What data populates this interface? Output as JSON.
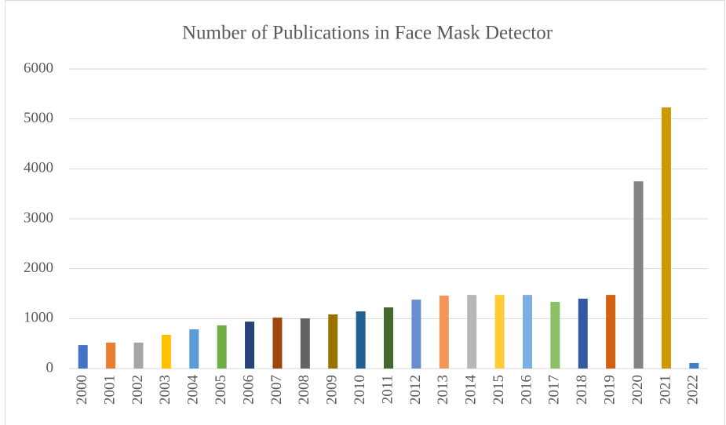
{
  "chart_data": {
    "type": "bar",
    "title": "Number of Publications in Face Mask Detector",
    "categories": [
      "2000",
      "2001",
      "2002",
      "2003",
      "2004",
      "2005",
      "2006",
      "2007",
      "2008",
      "2009",
      "2010",
      "2011",
      "2012",
      "2013",
      "2014",
      "2015",
      "2016",
      "2017",
      "2018",
      "2019",
      "2020",
      "2021",
      "2022"
    ],
    "values": [
      470,
      520,
      520,
      675,
      785,
      865,
      940,
      1020,
      1005,
      1085,
      1145,
      1225,
      1380,
      1460,
      1475,
      1475,
      1475,
      1335,
      1400,
      1475,
      3750,
      5230,
      110
    ],
    "colors": [
      "#4472c4",
      "#ed7d31",
      "#a5a5a5",
      "#ffc000",
      "#5b9bd5",
      "#70ad47",
      "#264478",
      "#9e480e",
      "#636363",
      "#997300",
      "#255e91",
      "#43682b",
      "#698ed0",
      "#f1975a",
      "#b7b7b7",
      "#ffcd33",
      "#7cafdd",
      "#8cc168",
      "#335aa1",
      "#d26012",
      "#848484",
      "#cc9a00",
      "#3f7fc4"
    ],
    "ylim": [
      0,
      6000
    ],
    "yticks": [
      0,
      1000,
      2000,
      3000,
      4000,
      5000,
      6000
    ],
    "grid": true
  }
}
